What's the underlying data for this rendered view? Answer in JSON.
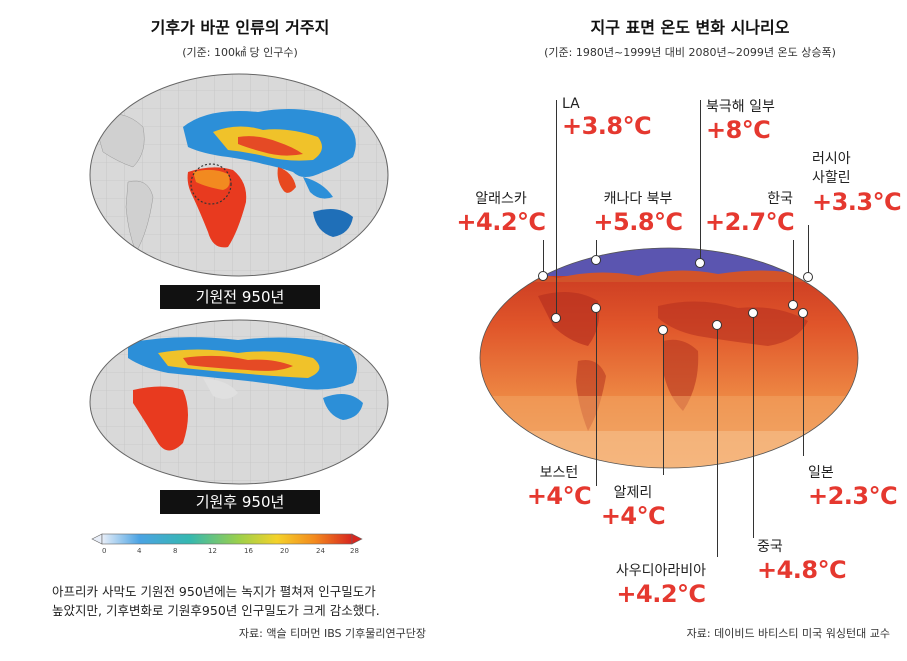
{
  "left": {
    "title": "기후가 바꾼 인류의 거주지",
    "subtitle": "(기준: 100㎢ 당 인구수)",
    "map_top_label": "기원전 950년",
    "map_bottom_label": "기원후 950년",
    "colorbar_ticks": [
      "0",
      "4",
      "8",
      "12",
      "16",
      "20",
      "24",
      "28"
    ],
    "caption_line1": "아프리카 사막도 기원전 950년에는 녹지가 펼쳐져 인구밀도가",
    "caption_line2": "높았지만, 기후변화로 기원후950년 인구밀도가 크게 감소했다.",
    "source": "자료: 액슬 티머먼 IBS 기후물리연구단장"
  },
  "right": {
    "title": "지구 표면 온도 변화 시나리오",
    "subtitle": "(기준: 1980년~1999년 대비 2080년~2099년 온도 상승폭)",
    "labels": [
      {
        "city": "LA",
        "temp": "+3.8℃"
      },
      {
        "city": "북극해 일부",
        "temp": "+8℃"
      },
      {
        "city": "알래스카",
        "temp": "+4.2℃"
      },
      {
        "city": "캐나다 북부",
        "temp": "+5.8℃"
      },
      {
        "city": "한국",
        "temp": "+2.7℃"
      },
      {
        "city": "러시아\n사할린",
        "temp": "+3.3℃"
      },
      {
        "city": "보스턴",
        "temp": "+4℃"
      },
      {
        "city": "알제리",
        "temp": "+4℃"
      },
      {
        "city": "일본",
        "temp": "+2.3℃"
      },
      {
        "city": "중국",
        "temp": "+4.8℃"
      },
      {
        "city": "사우디아라비아",
        "temp": "+4.2℃"
      }
    ],
    "source": "자료: 데이비드 바티스티 미국 워싱턴대 교수"
  },
  "colors": {
    "accent_red": "#e5382f"
  }
}
